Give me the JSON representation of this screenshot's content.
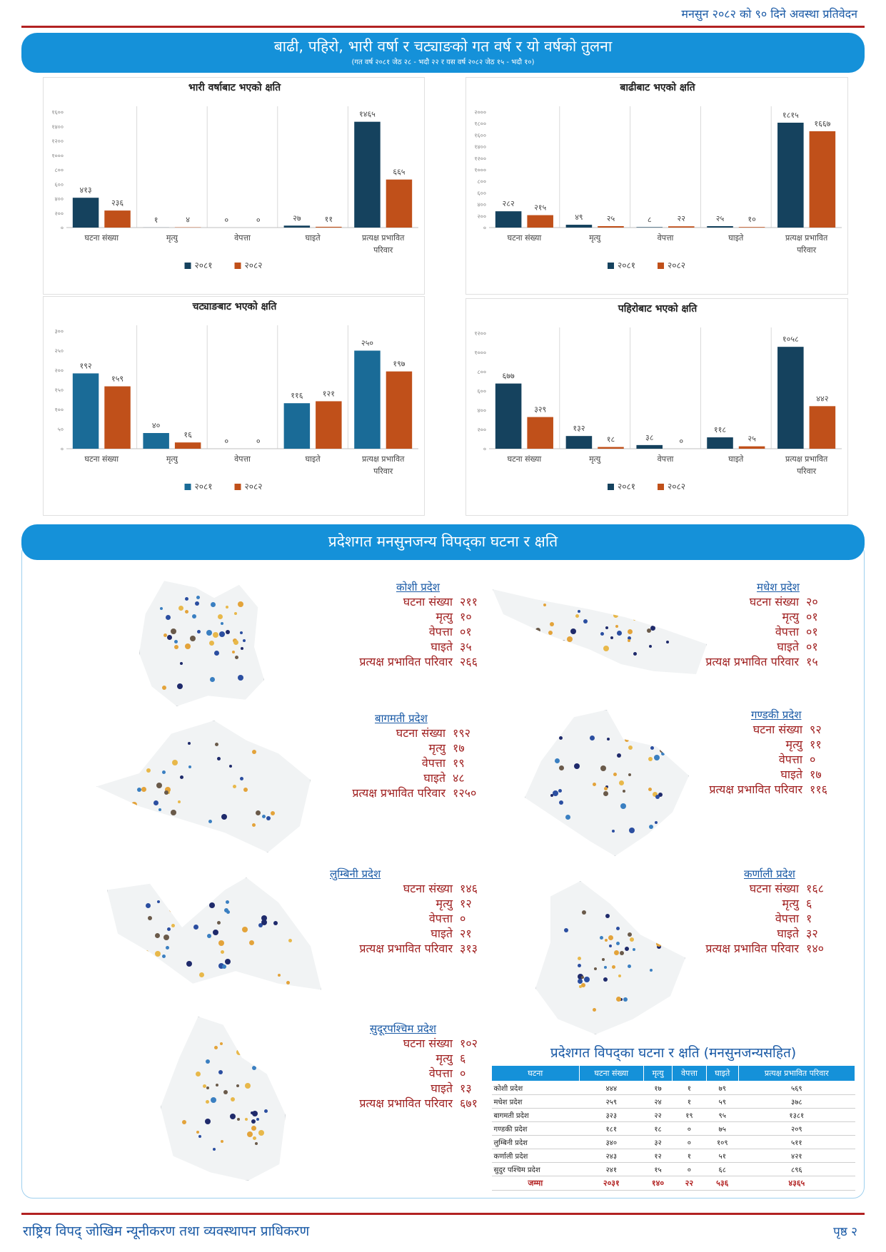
{
  "header": {
    "report_title": "मनसुन २०८२ को ९० दिने अवस्था प्रतिवेदन"
  },
  "section1": {
    "title": "बाढी, पहिरो, भारी वर्षा र चट्याङको गत वर्ष र यो वर्षको तुलना",
    "subtitle": "(गत वर्ष २०८१ जेठ २८ - भदौ २२ र यस वर्ष २०८२ जेठ १५ - भदौ १०)"
  },
  "chart_data": [
    {
      "id": "heavy-rain",
      "type": "bar",
      "title": "भारी वर्षाबाट भएको क्षति",
      "categories": [
        "घटना संख्या",
        "मृत्यु",
        "वेपत्ता",
        "घाइते",
        "प्रत्यक्ष प्रभावित परिवार"
      ],
      "series": [
        {
          "name": "२०८१",
          "values": [
            413,
            1,
            0,
            27,
            1465
          ],
          "labels": [
            "४१३",
            "१",
            "०",
            "२७",
            "१४६५"
          ]
        },
        {
          "name": "२०८२",
          "values": [
            236,
            4,
            0,
            11,
            665
          ],
          "labels": [
            "२३६",
            "४",
            "०",
            "११",
            "६६५"
          ]
        }
      ],
      "ylim": [
        0,
        1600
      ],
      "yticks": [
        "०",
        "२००",
        "४००",
        "६००",
        "८००",
        "१०००",
        "१२००",
        "१४००",
        "१६००"
      ],
      "colors": [
        "#15425e",
        "#c0501a"
      ],
      "legend": "bottom"
    },
    {
      "id": "flood",
      "type": "bar",
      "title": "बाढीबाट भएको क्षति",
      "categories": [
        "घटना संख्या",
        "मृत्यु",
        "वेपत्ता",
        "घाइते",
        "प्रत्यक्ष प्रभावित परिवार"
      ],
      "series": [
        {
          "name": "२०८१",
          "values": [
            282,
            49,
            8,
            25,
            1815
          ],
          "labels": [
            "२८२",
            "४९",
            "८",
            "२५",
            "१८१५"
          ]
        },
        {
          "name": "२०८२",
          "values": [
            215,
            25,
            22,
            10,
            1667
          ],
          "labels": [
            "२१५",
            "२५",
            "२२",
            "१०",
            "१६६७"
          ]
        }
      ],
      "ylim": [
        0,
        2000
      ],
      "yticks": [
        "०",
        "२००",
        "४००",
        "६००",
        "८००",
        "१०००",
        "१२००",
        "१४००",
        "१६००",
        "१८००",
        "२०००"
      ],
      "colors": [
        "#15425e",
        "#c0501a"
      ],
      "legend": "bottom"
    },
    {
      "id": "lightning",
      "type": "bar",
      "title": "चट्याङबाट भएको क्षति",
      "categories": [
        "घटना संख्या",
        "मृत्यु",
        "वेपत्ता",
        "घाइते",
        "प्रत्यक्ष प्रभावित परिवार"
      ],
      "series": [
        {
          "name": "२०८१",
          "values": [
            192,
            40,
            0,
            116,
            250
          ],
          "labels": [
            "१९२",
            "४०",
            "०",
            "११६",
            "२५०"
          ]
        },
        {
          "name": "२०८२",
          "values": [
            159,
            16,
            0,
            121,
            197
          ],
          "labels": [
            "१५९",
            "१६",
            "०",
            "१२१",
            "१९७"
          ]
        }
      ],
      "ylim": [
        0,
        300
      ],
      "yticks": [
        "०",
        "५०",
        "१००",
        "१५०",
        "२००",
        "२५०",
        "३००"
      ],
      "colors": [
        "#1a6b97",
        "#c0501a"
      ],
      "legend": "bottom"
    },
    {
      "id": "landslide",
      "type": "bar",
      "title": "पहिरोबाट भएको क्षति",
      "categories": [
        "घटना संख्या",
        "मृत्यु",
        "वेपत्ता",
        "घाइते",
        "प्रत्यक्ष प्रभावित परिवार"
      ],
      "series": [
        {
          "name": "२०८१",
          "values": [
            677,
            132,
            38,
            118,
            1058
          ],
          "labels": [
            "६७७",
            "१३२",
            "३८",
            "११८",
            "१०५८"
          ]
        },
        {
          "name": "२०८२",
          "values": [
            329,
            18,
            0,
            25,
            442
          ],
          "labels": [
            "३२९",
            "१८",
            "०",
            "२५",
            "४४२"
          ]
        }
      ],
      "ylim": [
        0,
        1200
      ],
      "yticks": [
        "०",
        "२००",
        "४००",
        "६००",
        "८००",
        "१०००",
        "१२००"
      ],
      "colors": [
        "#15425e",
        "#c0501a"
      ],
      "legend": "bottom"
    }
  ],
  "section2": {
    "title": "प्रदेशगत मनसुनजन्य विपद्का घटना र क्षति"
  },
  "stat_labels": [
    "घटना संख्या",
    "मृत्यु",
    "वेपत्ता",
    "घाइते",
    "प्रत्यक्ष प्रभावित परिवार"
  ],
  "provinces": [
    {
      "name": "कोशी प्रदेश",
      "values": [
        "२११",
        "१०",
        "०१",
        "३५",
        "२६६"
      ]
    },
    {
      "name": "मधेश प्रदेश",
      "values": [
        "२०",
        "०१",
        "०१",
        "०१",
        "१५"
      ]
    },
    {
      "name": "बागमती प्रदेश",
      "values": [
        "१९२",
        "१७",
        "१९",
        "४८",
        "१२५०"
      ]
    },
    {
      "name": "गण्डकी प्रदेश",
      "values": [
        "९२",
        "११",
        "०",
        "१७",
        "११६"
      ]
    },
    {
      "name": "लुम्बिनी प्रदेश",
      "values": [
        "१४६",
        "१२",
        "०",
        "२१",
        "३१३"
      ]
    },
    {
      "name": "कर्णाली प्रदेश",
      "values": [
        "१६८",
        "६",
        "१",
        "३२",
        "१४०"
      ]
    },
    {
      "name": "सुदूरपश्चिम प्रदेश",
      "values": [
        "१०२",
        "६",
        "०",
        "१३",
        "६७१"
      ]
    }
  ],
  "summary_table": {
    "title": "प्रदेशगत विपद्का घटना र क्षति (मनसुनजन्यसहित)",
    "headers": [
      "घटना",
      "घटना संख्या",
      "मृत्यु",
      "वेपत्ता",
      "घाइते",
      "प्रत्यक्ष प्रभावित परिवार"
    ],
    "rows": [
      [
        "कोशी प्रदेश",
        "४४४",
        "१७",
        "१",
        "७९",
        "५६९"
      ],
      [
        "मधेश प्रदेश",
        "२५९",
        "२४",
        "१",
        "५९",
        "३७८"
      ],
      [
        "बागमती प्रदेश",
        "३२३",
        "२२",
        "१९",
        "९५",
        "१३८१"
      ],
      [
        "गण्डकी प्रदेश",
        "१८१",
        "१८",
        "०",
        "७५",
        "२०९"
      ],
      [
        "लुम्बिनी प्रदेश",
        "३४०",
        "३२",
        "०",
        "१०९",
        "५११"
      ],
      [
        "कर्णाली प्रदेश",
        "२४३",
        "१२",
        "१",
        "५१",
        "४२१"
      ],
      [
        "सुदुर पश्चिम प्रदेश",
        "२४१",
        "१५",
        "०",
        "६८",
        "८९६"
      ]
    ],
    "total": [
      "जम्मा",
      "२०३१",
      "१४०",
      "२२",
      "५३६",
      "४३६५"
    ]
  },
  "footer": {
    "organization": "राष्ट्रिय विपद् जोखिम न्यूनीकरण तथा व्यवस्थापन प्राधिकरण",
    "page": "पृष्ठ २"
  }
}
